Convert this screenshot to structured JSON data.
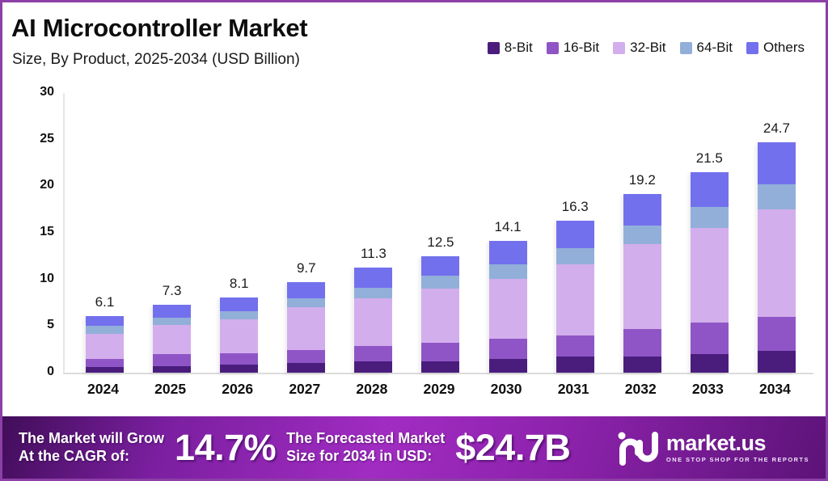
{
  "header": {
    "title": "AI Microcontroller Market",
    "subtitle": "Size, By Product, 2025-2034 (USD Billion)"
  },
  "chart_data": {
    "type": "bar",
    "stacked": true,
    "categories": [
      "2024",
      "2025",
      "2026",
      "2027",
      "2028",
      "2029",
      "2030",
      "2031",
      "2032",
      "2033",
      "2034"
    ],
    "series": [
      {
        "name": "8-Bit",
        "color": "#4a1d7d",
        "values": [
          0.6,
          0.7,
          0.9,
          1.0,
          1.2,
          1.2,
          1.5,
          1.7,
          1.7,
          2.0,
          2.3
        ]
      },
      {
        "name": "16-Bit",
        "color": "#8f55c6",
        "values": [
          0.9,
          1.3,
          1.2,
          1.4,
          1.7,
          2.0,
          2.1,
          2.3,
          3.0,
          3.4,
          3.7
        ]
      },
      {
        "name": "32-Bit",
        "color": "#d3aeec",
        "values": [
          2.7,
          3.1,
          3.6,
          4.6,
          5.1,
          5.8,
          6.5,
          7.6,
          9.1,
          10.1,
          11.5
        ]
      },
      {
        "name": "64-Bit",
        "color": "#92afd9",
        "values": [
          0.8,
          0.8,
          0.9,
          1.0,
          1.1,
          1.4,
          1.5,
          1.8,
          2.0,
          2.3,
          2.7
        ]
      },
      {
        "name": "Others",
        "color": "#7370ee",
        "values": [
          1.1,
          1.4,
          1.5,
          1.7,
          2.2,
          2.1,
          2.5,
          2.9,
          3.4,
          3.7,
          4.5
        ]
      }
    ],
    "totals": [
      "6.1",
      "7.3",
      "8.1",
      "9.7",
      "11.3",
      "12.5",
      "14.1",
      "16.3",
      "19.2",
      "21.5",
      "24.7"
    ],
    "title": "AI Microcontroller Market Size, By Product, 2025-2034 (USD Billion)",
    "xlabel": "",
    "ylabel": "",
    "ylim": [
      0,
      30
    ],
    "yticks": [
      0,
      5,
      10,
      15,
      20,
      25,
      30
    ],
    "grid": false,
    "legend_position": "top-right"
  },
  "footer": {
    "cagr_label_line1": "The Market will Grow",
    "cagr_label_line2": "At the CAGR of:",
    "cagr_value": "14.7%",
    "forecast_label_line1": "The Forecasted Market",
    "forecast_label_line2": "Size for 2034 in USD:",
    "forecast_value": "$24.7B",
    "brand": "market.us",
    "brand_tagline": "ONE STOP SHOP FOR THE REPORTS"
  },
  "colors": {
    "frame_border": "#8c3fa6",
    "footer_gradient_bright": "#a12cc2",
    "footer_gradient_dark": "#410d59"
  }
}
